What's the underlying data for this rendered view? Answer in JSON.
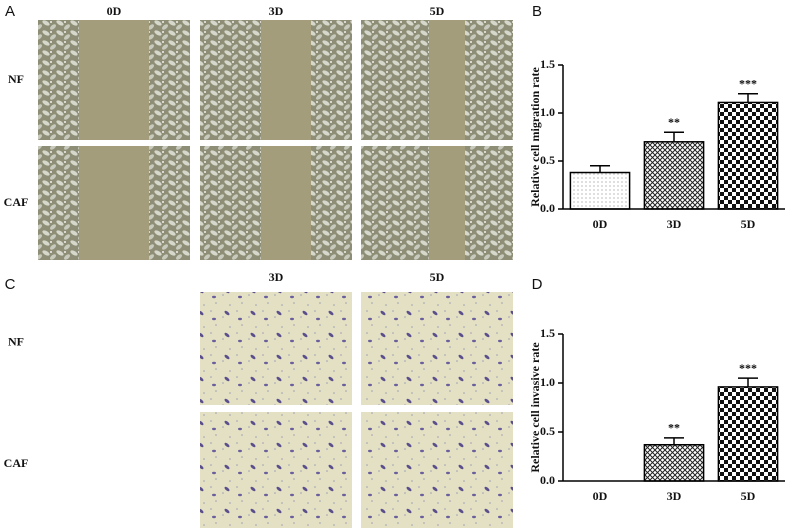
{
  "panel_labels": [
    "A",
    "B",
    "C",
    "D"
  ],
  "migration_images": {
    "columns": [
      "0D",
      "3D",
      "5D"
    ],
    "rows": [
      "NF",
      "CAF"
    ]
  },
  "invasion_images": {
    "columns": [
      "3D",
      "5D"
    ],
    "rows": [
      "NF",
      "CAF"
    ]
  },
  "chart_data": [
    {
      "type": "bar",
      "ylabel": "Relative cell migration rate",
      "categories": [
        "0D",
        "3D",
        "5D"
      ],
      "values": [
        0.38,
        0.7,
        1.11
      ],
      "errors": [
        0.07,
        0.1,
        0.09
      ],
      "annotations": [
        null,
        "**",
        "***"
      ],
      "ylim": [
        0,
        1.5
      ],
      "yticks": [
        {
          "value": 0,
          "label": "0.0"
        },
        0.5,
        {
          "value": 1,
          "label": "1.0"
        },
        1.5
      ]
    },
    {
      "type": "bar",
      "ylabel": "Relative cell invasive rate",
      "categories": [
        "0D",
        "3D",
        "5D"
      ],
      "values": [
        0,
        0.37,
        0.96
      ],
      "errors": [
        0,
        0.07,
        0.09
      ],
      "annotations": [
        null,
        "**",
        "***"
      ],
      "ylim": [
        0,
        1.5
      ],
      "yticks": [
        {
          "value": 0,
          "label": "0.0"
        },
        0.5,
        {
          "value": 1,
          "label": "1.0"
        },
        1.5
      ]
    }
  ]
}
